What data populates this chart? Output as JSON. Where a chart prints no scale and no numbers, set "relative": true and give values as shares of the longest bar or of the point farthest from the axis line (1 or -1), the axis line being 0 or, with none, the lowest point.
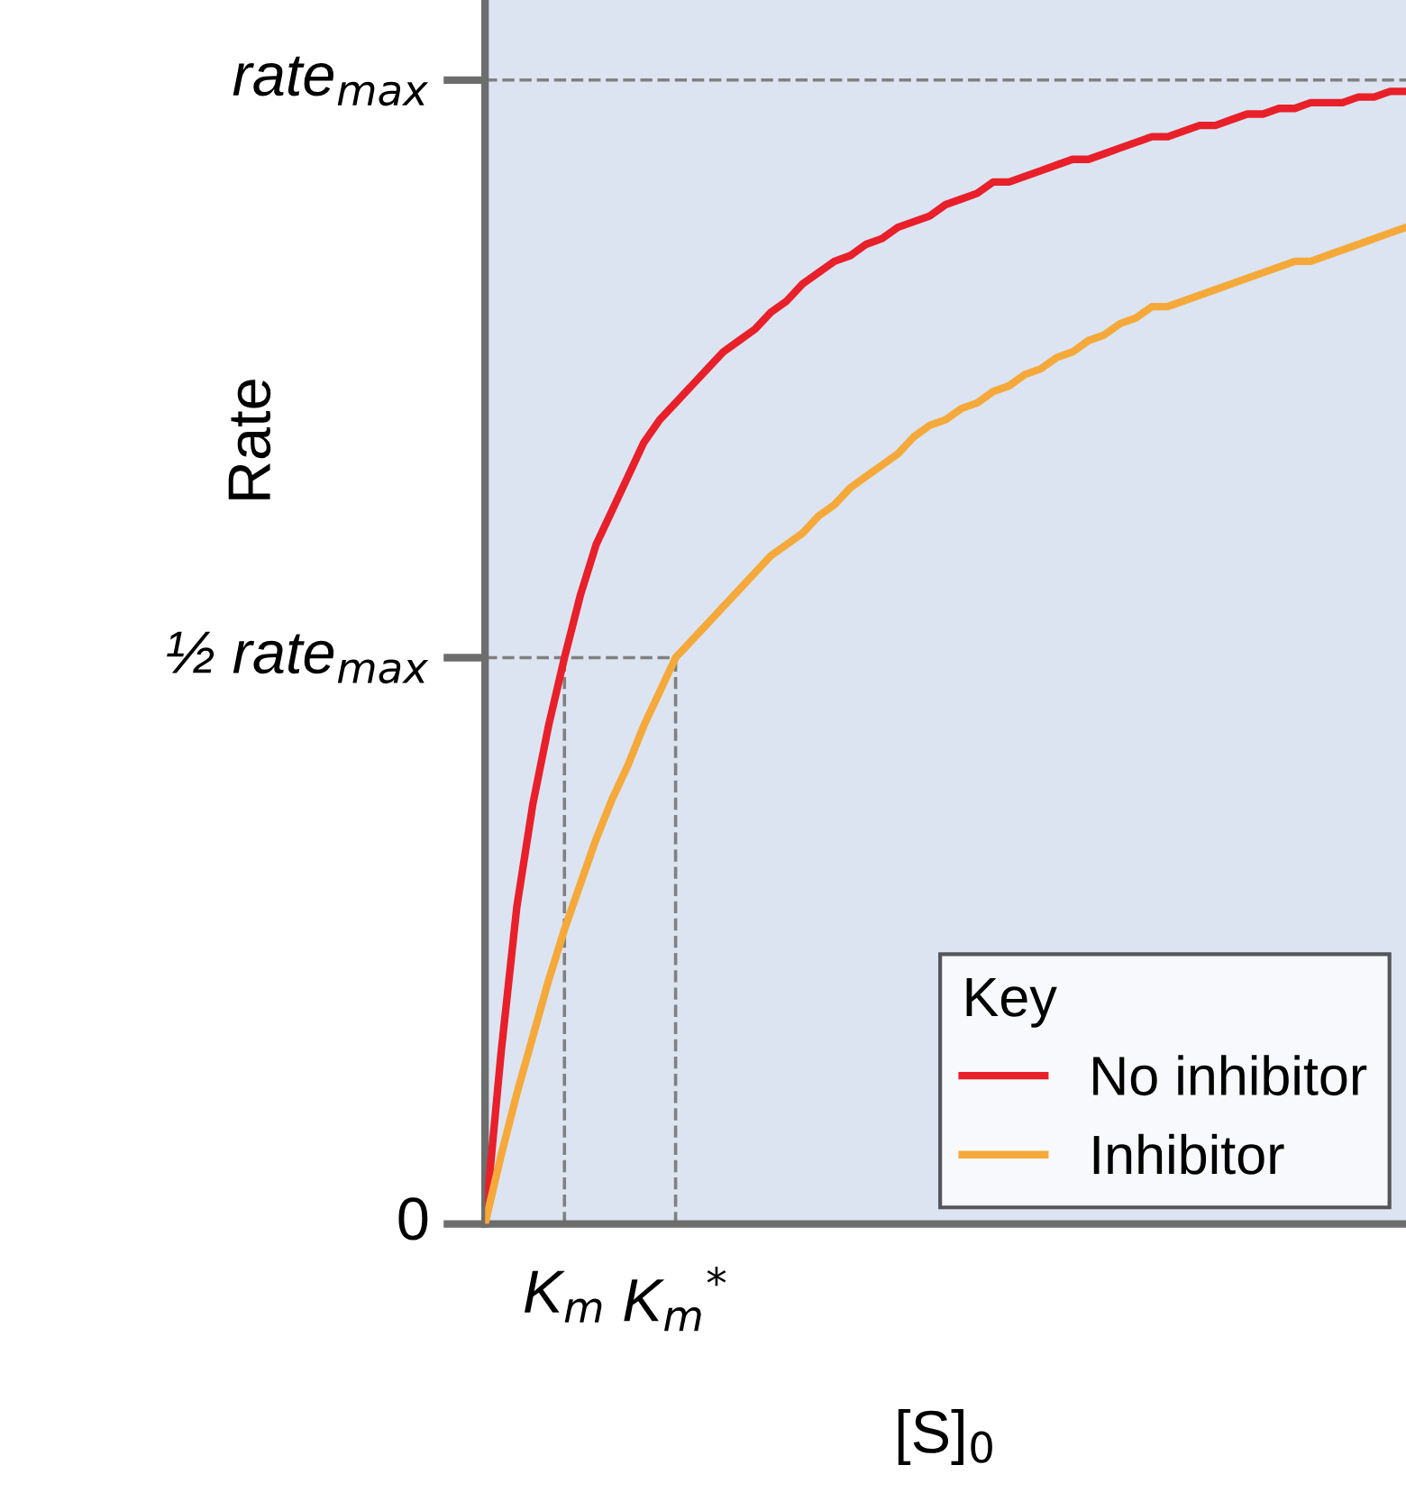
{
  "chart_data": {
    "type": "line",
    "xlabel": "[S]$_{0}$",
    "ylabel": "Rate",
    "relative": true,
    "categories": [
      null,
      null,
      null,
      null,
      null,
      "K$_{m}$",
      null,
      null,
      null,
      null,
      null,
      null,
      "K$_{m}$$^{*}$",
      null,
      null,
      null,
      null,
      null,
      null,
      null,
      null,
      null,
      null,
      null,
      null,
      null,
      null,
      null,
      null,
      null,
      null,
      null,
      null,
      null,
      null,
      null,
      null,
      null,
      null,
      null,
      null,
      null,
      null,
      null,
      null,
      null,
      null,
      null,
      null,
      null,
      null,
      null,
      null,
      null,
      null,
      null,
      null,
      null,
      null
    ],
    "series": [
      {
        "name": "No inhibitor",
        "color": "#e8202a",
        "values": [
          0,
          0.15,
          0.28,
          0.37,
          0.44,
          0.5,
          0.555,
          0.6,
          0.63,
          0.66,
          0.69,
          0.71,
          0.725,
          0.74,
          0.755,
          0.77,
          0.78,
          0.79,
          0.805,
          0.815,
          0.83,
          0.84,
          0.85,
          0.855,
          0.865,
          0.87,
          0.88,
          0.885,
          0.89,
          0.9,
          0.905,
          0.91,
          0.92,
          0.92,
          0.925,
          0.93,
          0.935,
          0.94,
          0.94,
          0.945,
          0.95,
          0.955,
          0.96,
          0.96,
          0.965,
          0.97,
          0.97,
          0.975,
          0.98,
          0.98,
          0.985,
          0.985,
          0.99,
          0.99,
          0.99,
          0.995,
          0.995,
          1,
          1
        ]
      },
      {
        "name": "Inhibitor",
        "color": "#f5a93a",
        "values": [
          0,
          0.06,
          0.115,
          0.165,
          0.215,
          0.26,
          0.3,
          0.34,
          0.375,
          0.405,
          0.44,
          0.47,
          0.5,
          0.515,
          0.53,
          0.545,
          0.56,
          0.575,
          0.59,
          0.6,
          0.61,
          0.625,
          0.635,
          0.65,
          0.66,
          0.67,
          0.68,
          0.695,
          0.705,
          0.71,
          0.72,
          0.725,
          0.735,
          0.74,
          0.75,
          0.755,
          0.765,
          0.77,
          0.78,
          0.785,
          0.795,
          0.8,
          0.81,
          0.81,
          0.815,
          0.82,
          0.825,
          0.83,
          0.835,
          0.84,
          0.845,
          0.85,
          0.85,
          0.855,
          0.86,
          0.865,
          0.87,
          0.875,
          0.88
        ]
      }
    ],
    "ref_lines": [
      {
        "axis": "y",
        "value": 1.01,
        "label": "rate$_{max}$",
        "color": "#808080",
        "line_style": "dashed"
      },
      {
        "axis": "y",
        "value": 0.5,
        "label": "½ rate$_{max}$",
        "color": "#808080",
        "line_style": "dashed"
      },
      {
        "axis": "x",
        "value": "K$_{m}$",
        "color": "#808080",
        "line_style": "dashed"
      },
      {
        "axis": "x",
        "value": "K$_{m}$$^{*}$",
        "color": "#808080",
        "line_style": "dashed"
      }
    ],
    "annotations": [
      "0"
    ],
    "legend_title": "Key",
    "legend": "bottom right",
    "grid": false,
    "marker": "none",
    "line_style": "solid"
  }
}
